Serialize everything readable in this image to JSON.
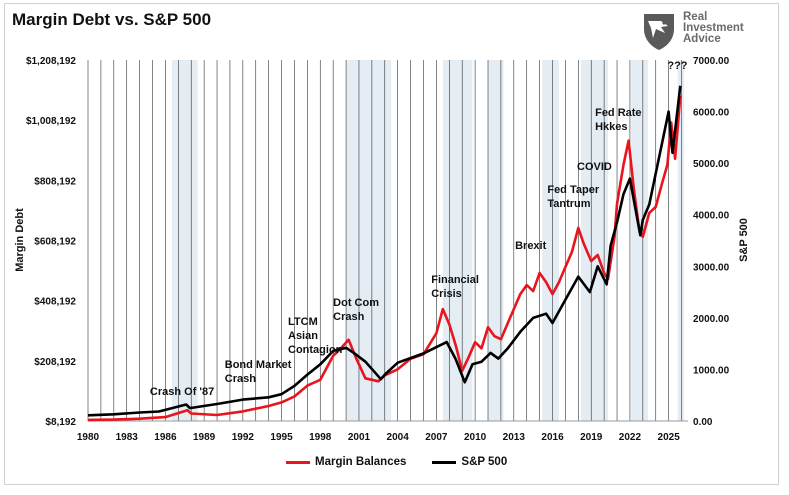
{
  "chart_data": {
    "type": "line",
    "title": "Margin Debt vs. S&P 500",
    "ylabel": "Margin Debt",
    "y2label": "S&P 500",
    "ylim": [
      8192,
      1208192
    ],
    "y2lim": [
      0,
      7000
    ],
    "xlim": [
      1980,
      2026.5
    ],
    "x_ticks": [
      "1980",
      "1983",
      "1986",
      "1989",
      "1992",
      "1995",
      "1998",
      "2001",
      "2004",
      "2007",
      "2010",
      "2013",
      "2016",
      "2019",
      "2022",
      "2025"
    ],
    "y_ticks": [
      "$8,192",
      "$208,192",
      "$408,192",
      "$608,192",
      "$808,192",
      "$1,008,192",
      "$1,208,192"
    ],
    "y2_ticks": [
      "0.00",
      "1000.00",
      "2000.00",
      "3000.00",
      "4000.00",
      "5000.00",
      "6000.00",
      "7000.00"
    ],
    "grid": "vertical lines every year",
    "legend_position": "bottom",
    "colors": {
      "margin": "#e8141e",
      "sp500": "#000000",
      "shade": "#e4ecf4"
    },
    "shaded_periods": [
      [
        1986.5,
        1988.5
      ],
      [
        2000.0,
        2003.5
      ],
      [
        2007.5,
        2009.8
      ],
      [
        2011.0,
        2012.2
      ],
      [
        2015.2,
        2016.5
      ],
      [
        2018.2,
        2020.3
      ],
      [
        2022.1,
        2023.4
      ],
      [
        2025.7,
        2026.2
      ]
    ],
    "series": [
      {
        "name": "Margin Balances",
        "x": [
          1980,
          1982,
          1984,
          1986,
          1987.7,
          1988,
          1990,
          1992,
          1994,
          1995,
          1996,
          1997,
          1998,
          1999,
          1999.5,
          2000.2,
          2000.8,
          2001.5,
          2002.5,
          2003,
          2004,
          2005,
          2006,
          2007,
          2007.5,
          2008,
          2008.5,
          2009,
          2009.5,
          2010,
          2010.5,
          2011,
          2011.5,
          2012,
          2013,
          2013.5,
          2014,
          2014.5,
          2015,
          2015.5,
          2016,
          2016.5,
          2017,
          2017.5,
          2018,
          2018.4,
          2018.8,
          2019,
          2019.5,
          2020,
          2020.3,
          2020.8,
          2021,
          2021.5,
          2021.9,
          2022.3,
          2022.7,
          2023,
          2023.5,
          2024,
          2024.5,
          2024.9,
          2025.2,
          2025.5,
          2025.9
        ],
        "values": [
          12000,
          13000,
          16000,
          21000,
          44000,
          33000,
          28000,
          40000,
          58000,
          70000,
          90000,
          126000,
          145000,
          225000,
          245000,
          278000,
          215000,
          150000,
          140000,
          160000,
          180000,
          215000,
          230000,
          300000,
          380000,
          330000,
          260000,
          175000,
          220000,
          270000,
          250000,
          320000,
          290000,
          280000,
          380000,
          430000,
          460000,
          440000,
          500000,
          470000,
          430000,
          470000,
          520000,
          570000,
          650000,
          600000,
          560000,
          540000,
          560000,
          500000,
          480000,
          620000,
          730000,
          860000,
          940000,
          780000,
          650000,
          620000,
          700000,
          720000,
          800000,
          860000,
          1000000,
          880000,
          1090000
        ]
      },
      {
        "name": "S&P 500",
        "x": [
          1980,
          1982,
          1984,
          1985.5,
          1987.6,
          1987.9,
          1990,
          1992,
          1994,
          1995,
          1996,
          1997,
          1998,
          1999,
          2000,
          2000.6,
          2001.5,
          2002.7,
          2003,
          2004,
          2006,
          2007.8,
          2008.5,
          2009.2,
          2009.8,
          2010.5,
          2011.2,
          2011.8,
          2012.5,
          2013.5,
          2014.5,
          2015.5,
          2016,
          2017,
          2018,
          2018.9,
          2019.5,
          2020.2,
          2020.5,
          2021,
          2021.5,
          2022,
          2022.8,
          2023,
          2023.5,
          2024,
          2024.5,
          2025,
          2025.3,
          2025.9
        ],
        "values": [
          110,
          130,
          165,
          185,
          320,
          250,
          330,
          415,
          460,
          520,
          680,
          900,
          1100,
          1360,
          1420,
          1320,
          1150,
          810,
          900,
          1130,
          1310,
          1530,
          1200,
          750,
          1100,
          1150,
          1320,
          1210,
          1400,
          1730,
          2000,
          2080,
          1900,
          2350,
          2800,
          2500,
          3000,
          2650,
          3400,
          3850,
          4400,
          4700,
          3600,
          3900,
          4200,
          4800,
          5400,
          6000,
          5200,
          6500
        ]
      }
    ],
    "annotations": [
      {
        "lines": [
          "Crash Of '87"
        ],
        "x": 1984.8,
        "y": 3.1
      },
      {
        "lines": [
          "Bond Market",
          "Crash"
        ],
        "x": 1990.6,
        "y": 11.25
      },
      {
        "lines": [
          "LTCM",
          "Asian",
          "Contagion"
        ],
        "x": 1995.5,
        "y": 19.7
      },
      {
        "lines": [
          "Dot Com",
          "Crash"
        ],
        "x": 1999.0,
        "y": 21.85
      },
      {
        "lines": [
          "Financial",
          "Crisis"
        ],
        "x": 2006.6,
        "y": 24.9
      },
      {
        "lines": [
          "Brexit"
        ],
        "x": 2013.1,
        "y": 30.65
      },
      {
        "lines": [
          "Fed Taper",
          "Tantrum"
        ],
        "x": 2015.6,
        "y": 40.5
      },
      {
        "lines": [
          "COVID"
        ],
        "x": 2017.9,
        "y": 45.0
      },
      {
        "lines": [
          "Fed Rate",
          "Hkkes"
        ],
        "x": 2019.3,
        "y": 56.2
      },
      {
        "lines": [
          "???"
        ],
        "x": 2024.9,
        "y": 67.3
      }
    ]
  },
  "brand": {
    "line1": "Real",
    "line2": "Investment",
    "line3": "Advice"
  }
}
